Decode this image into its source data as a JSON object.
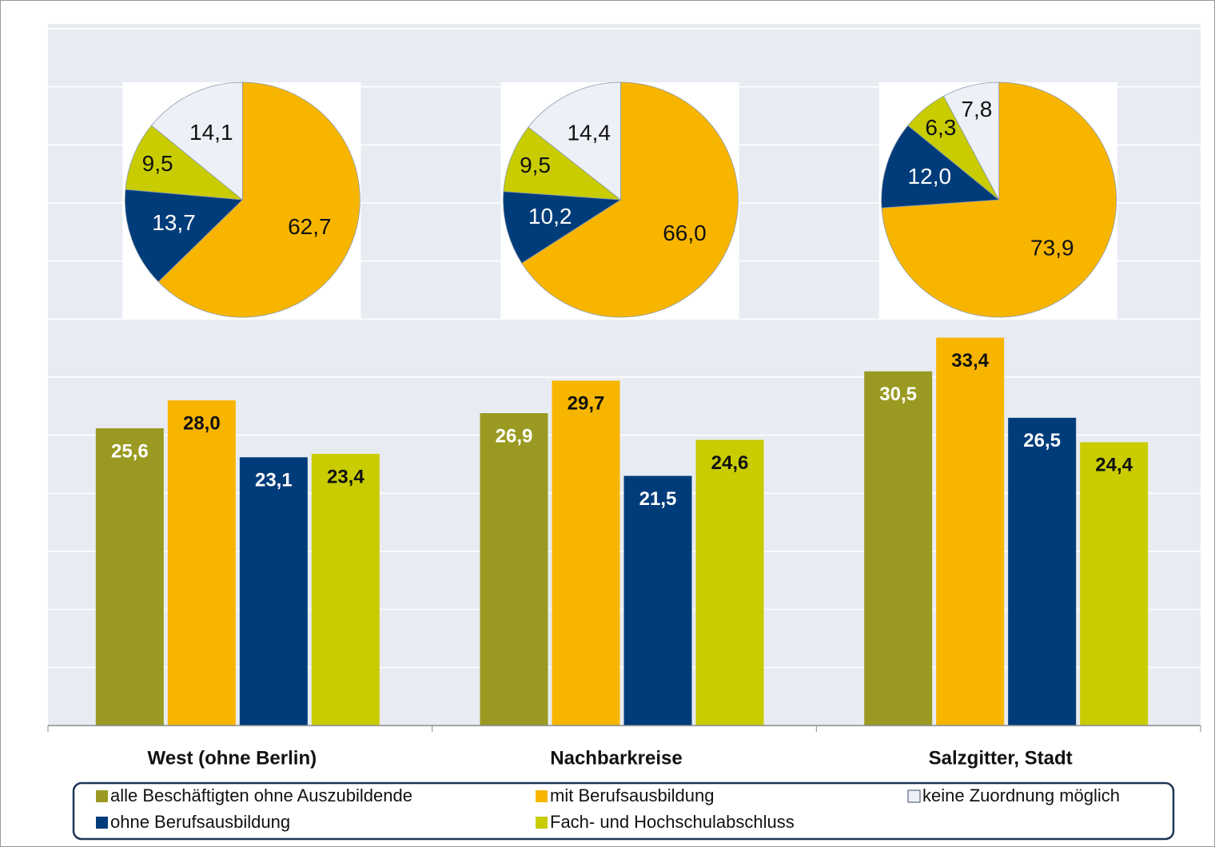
{
  "chart_data": {
    "type": "bar",
    "categories": [
      "West (ohne Berlin)",
      "Nachbarkreise",
      "Salzgitter, Stadt"
    ],
    "series": [
      {
        "name": "alle Beschäftigten ohne Auszubildende",
        "color": "#9a9a22",
        "values": [
          25.6,
          26.9,
          30.5
        ],
        "value_labels": [
          "25,6",
          "26,9",
          "30,5"
        ]
      },
      {
        "name": "mit Berufsausbildung",
        "color": "#f8b500",
        "values": [
          28.0,
          29.7,
          33.4
        ],
        "value_labels": [
          "28,0",
          "29,7",
          "33,4"
        ]
      },
      {
        "name": "ohne Berufsausbildung",
        "color": "#003c7a",
        "values": [
          23.1,
          21.5,
          26.5
        ],
        "value_labels": [
          "23,1",
          "21,5",
          "26,5"
        ]
      },
      {
        "name": "Fach- und Hochschulabschluss",
        "color": "#c8cc00",
        "values": [
          23.4,
          24.6,
          24.4
        ],
        "value_labels": [
          "23,4",
          "24,6",
          "24,4"
        ]
      },
      {
        "name": "keine Zuordnung möglich",
        "color": "#eef0f7"
      }
    ],
    "ylim": [
      0,
      60
    ],
    "yticks": [
      0,
      5,
      10,
      15,
      20,
      25,
      30,
      35,
      40,
      45,
      50,
      55,
      60
    ],
    "grid": true,
    "pies": [
      {
        "type": "pie",
        "values": [
          62.7,
          13.7,
          9.5,
          14.1
        ],
        "value_labels": [
          "62,7",
          "13,7",
          "9,5",
          "14,1"
        ]
      },
      {
        "type": "pie",
        "values": [
          66.0,
          10.2,
          9.5,
          14.4
        ],
        "value_labels": [
          "66,0",
          "10,2",
          "9,5",
          "14,4"
        ]
      },
      {
        "type": "pie",
        "values": [
          73.9,
          12.0,
          6.3,
          7.8
        ],
        "value_labels": [
          "73,9",
          "12,0",
          "6,3",
          "7,8"
        ]
      }
    ]
  }
}
